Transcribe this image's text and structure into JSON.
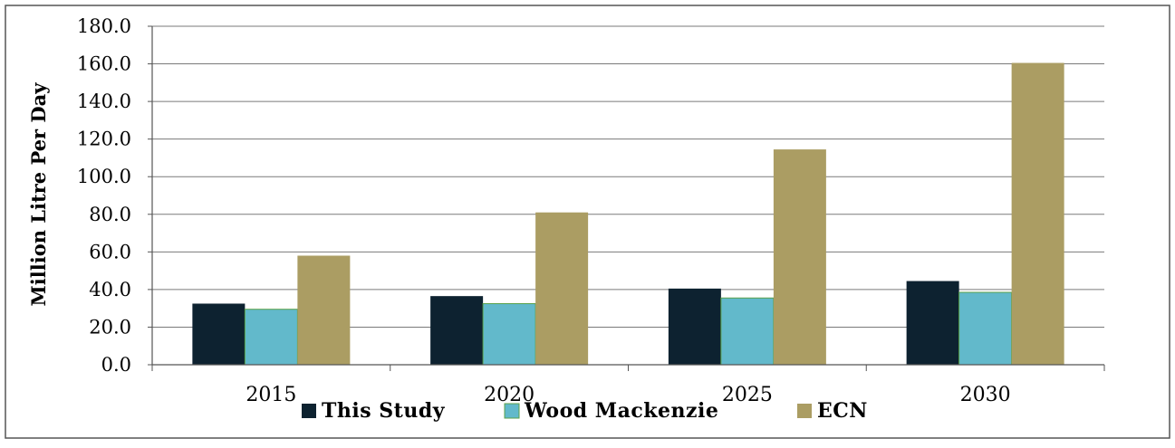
{
  "chart_data": {
    "type": "bar",
    "title": "",
    "xlabel": "",
    "ylabel": "Million Litre Per Day",
    "ylim": [
      0,
      180
    ],
    "ytick_step": 20,
    "ytick_labels": [
      "0.0",
      "20.0",
      "40.0",
      "60.0",
      "80.0",
      "100.0",
      "120.0",
      "140.0",
      "160.0",
      "180.0"
    ],
    "categories": [
      "2015",
      "2020",
      "2025",
      "2030"
    ],
    "series": [
      {
        "name": "This Study",
        "values": [
          32.5,
          36.5,
          40.5,
          44.5
        ],
        "color": "#0d2230"
      },
      {
        "name": "Wood Mackenzie",
        "values": [
          29.5,
          32.5,
          35.5,
          38.5
        ],
        "color": "#62b9cb"
      },
      {
        "name": "ECN",
        "values": [
          58.0,
          81.0,
          114.5,
          160.5
        ],
        "color": "#ab9d63"
      }
    ],
    "grid": true,
    "legend_position": "bottom"
  }
}
